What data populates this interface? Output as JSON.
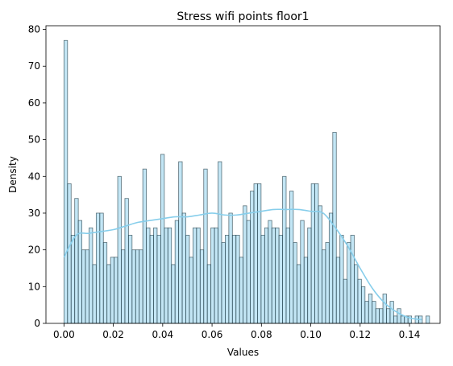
{
  "chart_data": {
    "type": "bar",
    "title": "Stress wifi points floor1",
    "xlabel": "Values",
    "ylabel": "Density",
    "xlim": [
      -0.0073,
      0.1524
    ],
    "ylim": [
      0,
      81
    ],
    "xticks": [
      0.0,
      0.02,
      0.04,
      0.06,
      0.08,
      0.1,
      0.12,
      0.14
    ],
    "xtick_labels": [
      "0.00",
      "0.02",
      "0.04",
      "0.06",
      "0.08",
      "0.10",
      "0.12",
      "0.14"
    ],
    "yticks": [
      0,
      10,
      20,
      30,
      40,
      50,
      60,
      70,
      80
    ],
    "ytick_labels": [
      "0",
      "10",
      "20",
      "30",
      "40",
      "50",
      "60",
      "70",
      "80"
    ],
    "grid": false,
    "bin_start": 0.0,
    "bin_width": 0.001452,
    "values": [
      77,
      38,
      24,
      34,
      28,
      20,
      20,
      26,
      16,
      30,
      30,
      22,
      16,
      18,
      18,
      40,
      20,
      34,
      24,
      20,
      20,
      20,
      42,
      26,
      24,
      26,
      24,
      46,
      26,
      26,
      16,
      28,
      44,
      30,
      24,
      18,
      26,
      26,
      20,
      42,
      16,
      26,
      26,
      44,
      22,
      24,
      30,
      24,
      24,
      18,
      32,
      28,
      36,
      38,
      38,
      24,
      26,
      28,
      26,
      26,
      24,
      40,
      26,
      36,
      22,
      16,
      28,
      18,
      26,
      38,
      38,
      32,
      20,
      22,
      30,
      52,
      18,
      24,
      12,
      22,
      24,
      16,
      12,
      10,
      6,
      8,
      6,
      4,
      4,
      8,
      4,
      6,
      2,
      4,
      2,
      2,
      2,
      0,
      2,
      2,
      0,
      2
    ],
    "kde_x": [
      0.0,
      0.005,
      0.01,
      0.015,
      0.02,
      0.025,
      0.03,
      0.035,
      0.04,
      0.045,
      0.05,
      0.055,
      0.06,
      0.065,
      0.07,
      0.075,
      0.08,
      0.085,
      0.09,
      0.095,
      0.1,
      0.105,
      0.11,
      0.115,
      0.12,
      0.125,
      0.13,
      0.135,
      0.14,
      0.145
    ],
    "kde_y": [
      18,
      24,
      24.5,
      25,
      25.5,
      26.5,
      27.5,
      28,
      28.5,
      29,
      29,
      29.5,
      30,
      29.5,
      29.5,
      30,
      30.5,
      31,
      31,
      31,
      30.5,
      30,
      26,
      21,
      15,
      9.5,
      5.5,
      3,
      1.5,
      1
    ],
    "bar_color": "#87CEEB",
    "kde_color": "#87CEEB",
    "edge_color": "#1f3a44"
  }
}
